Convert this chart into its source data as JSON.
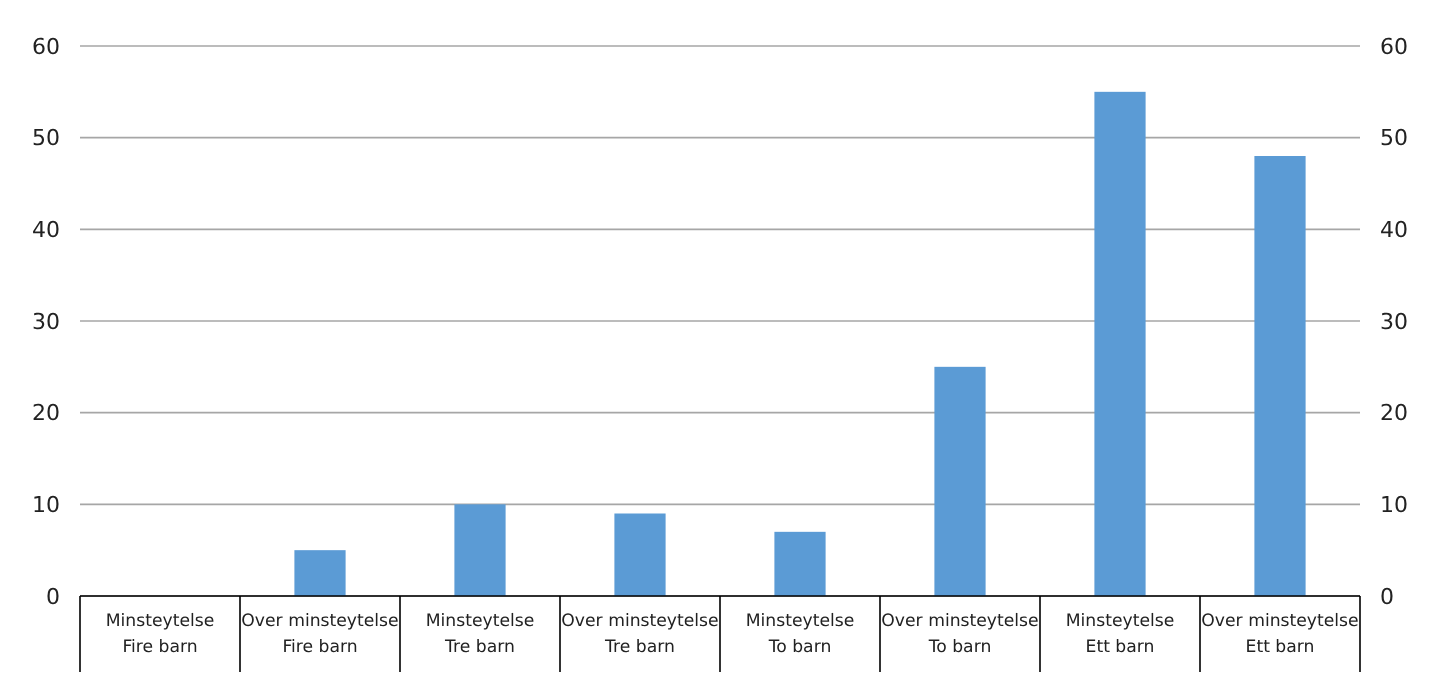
{
  "chart_data": {
    "type": "bar",
    "categories": [
      "Minsteytelse\nFire barn",
      "Over minsteytelse\nFire barn",
      "Minsteytelse\nTre barn",
      "Over minsteytelse\nTre barn",
      "Minsteytelse\nTo barn",
      "Over minsteytelse\nTo barn",
      "Minsteytelse\nEtt barn",
      "Over minsteytelse\nEtt barn"
    ],
    "values": [
      0,
      5,
      10,
      9,
      7,
      25,
      55,
      48
    ],
    "color": "#5b9bd5",
    "ylim": [
      0,
      60
    ],
    "yticks": [
      0,
      10,
      20,
      30,
      40,
      50,
      60
    ],
    "y2lim": [
      0,
      60
    ],
    "y2ticks": [
      0,
      10,
      20,
      30,
      40,
      50,
      60
    ],
    "grid": "y"
  }
}
